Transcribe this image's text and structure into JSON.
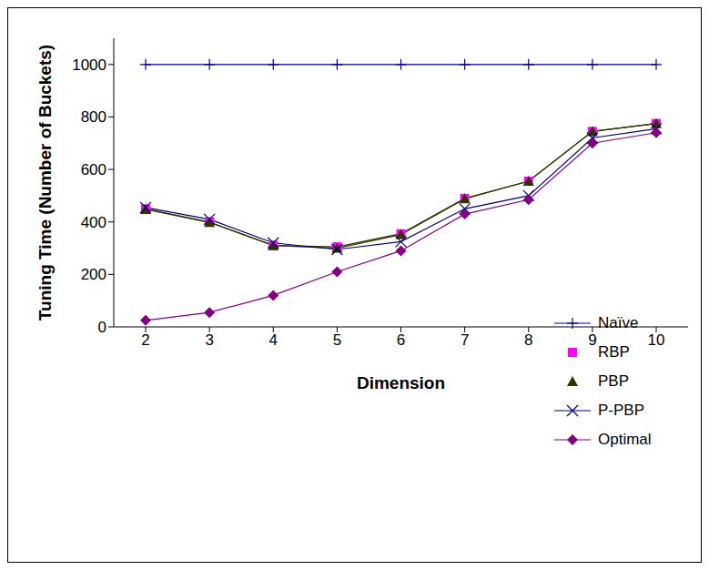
{
  "chart_data": {
    "type": "line",
    "x_label": "Dimension",
    "y_label": "Tuning Time (Number of Buckets)",
    "categories": [
      "2",
      "3",
      "4",
      "5",
      "6",
      "7",
      "8",
      "9",
      "10"
    ],
    "ylim": [
      0,
      1100
    ],
    "yticks": [
      0,
      200,
      400,
      600,
      800,
      1000
    ],
    "grid": false,
    "legend": "right",
    "series": [
      {
        "name": "Naïve",
        "color": "#000080",
        "marker": "plus",
        "values": [
          1000,
          1000,
          1000,
          1000,
          1000,
          1000,
          1000,
          1000,
          1000
        ]
      },
      {
        "name": "RBP",
        "color": "#ff00ff",
        "marker": "square",
        "values": [
          450,
          400,
          310,
          305,
          355,
          490,
          555,
          745,
          775
        ]
      },
      {
        "name": "PBP",
        "color": "#333300",
        "marker": "triangle",
        "values": [
          448,
          398,
          310,
          300,
          352,
          488,
          555,
          745,
          775
        ]
      },
      {
        "name": "P-PBP",
        "color": "#000080",
        "marker": "x",
        "values": [
          455,
          410,
          320,
          295,
          325,
          450,
          500,
          720,
          755
        ]
      },
      {
        "name": "Optimal",
        "color": "#800080",
        "marker": "diamond",
        "values": [
          25,
          55,
          120,
          210,
          290,
          430,
          485,
          700,
          740
        ]
      }
    ]
  }
}
